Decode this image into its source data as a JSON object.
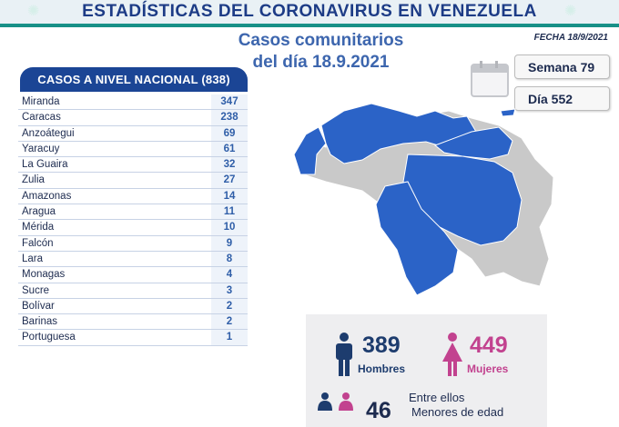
{
  "header": {
    "title": "ESTADÍSTICAS DEL CORONAVIRUS EN VENEZUELA",
    "subtitle_line1": "Casos comunitarios",
    "subtitle_line2": "del día 18.9.2021",
    "fecha": "FECHA 18/9/2021"
  },
  "calendar": {
    "semana": "Semana 79",
    "dia": "Día 552"
  },
  "table": {
    "title": "CASOS A NIVEL NACIONAL (838)",
    "rows": [
      {
        "state": "Miranda",
        "value": "347"
      },
      {
        "state": "Caracas",
        "value": "238"
      },
      {
        "state": "Anzoátegui",
        "value": "69"
      },
      {
        "state": "Yaracuy",
        "value": "61"
      },
      {
        "state": "La Guaira",
        "value": "32"
      },
      {
        "state": "Zulia",
        "value": "27"
      },
      {
        "state": "Amazonas",
        "value": "14"
      },
      {
        "state": "Aragua",
        "value": "11"
      },
      {
        "state": "Mérida",
        "value": "10"
      },
      {
        "state": "Falcón",
        "value": "9"
      },
      {
        "state": "Lara",
        "value": "8"
      },
      {
        "state": "Monagas",
        "value": "4"
      },
      {
        "state": "Sucre",
        "value": "3"
      },
      {
        "state": "Bolívar",
        "value": "2"
      },
      {
        "state": "Barinas",
        "value": "2"
      },
      {
        "state": "Portuguesa",
        "value": "1"
      }
    ]
  },
  "stats": {
    "hombres_value": "389",
    "hombres_label": "Hombres",
    "mujeres_value": "449",
    "mujeres_label": "Mujeres",
    "entre_label": "Entre ellos",
    "menores_value": "46",
    "menores_label": "Menores de edad"
  },
  "colors": {
    "header_blue": "#1b4595",
    "accent_blue": "#3d66ae",
    "map_blue": "#2b63c7",
    "map_grey": "#c9c9c9",
    "male": "#1d3c6e",
    "female": "#c2428f",
    "banner_teal": "#1fa79a"
  }
}
